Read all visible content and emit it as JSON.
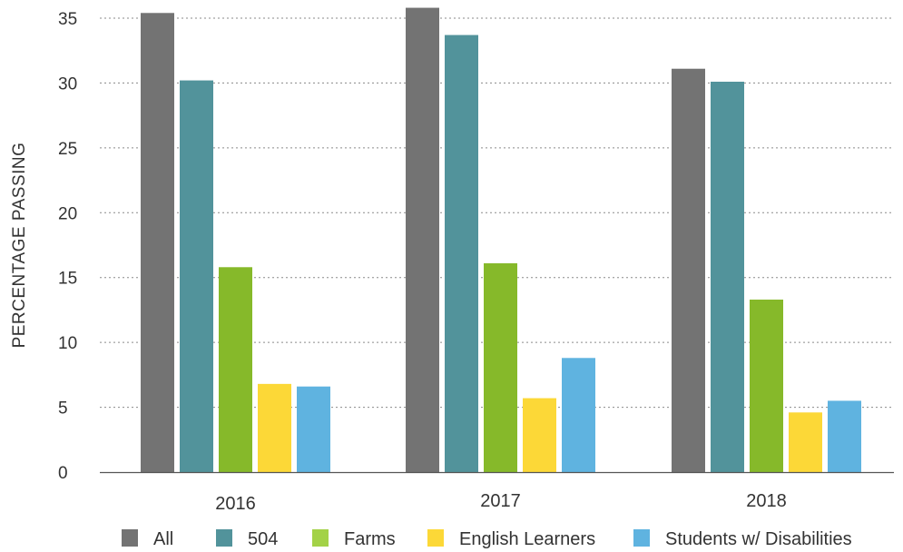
{
  "chart_data": {
    "type": "bar",
    "categories": [
      "2016",
      "2017",
      "2018"
    ],
    "series": [
      {
        "name": "All",
        "color": "#737373",
        "values": [
          35.4,
          35.8,
          31.1
        ]
      },
      {
        "name": "504",
        "color": "#52939b",
        "values": [
          30.2,
          33.7,
          30.1
        ]
      },
      {
        "name": "Farms",
        "color": "#86b92a",
        "values": [
          15.8,
          16.1,
          13.3
        ]
      },
      {
        "name": "English Learners",
        "color": "#fcd837",
        "values": [
          6.8,
          5.7,
          4.6
        ]
      },
      {
        "name": "Students w/ Disabilities",
        "color": "#5fb3e0",
        "values": [
          6.6,
          8.8,
          5.5
        ]
      }
    ],
    "legend_colors": [
      "#737373",
      "#52939b",
      "#a3d247",
      "#fcd837",
      "#5fb3e0"
    ],
    "xlabel": "",
    "ylabel": "PERCENTAGE PASSING",
    "ylim": [
      0,
      35
    ],
    "yticks": [
      0,
      5,
      10,
      15,
      20,
      25,
      30,
      35
    ],
    "grid": true,
    "legend_position": "bottom"
  }
}
